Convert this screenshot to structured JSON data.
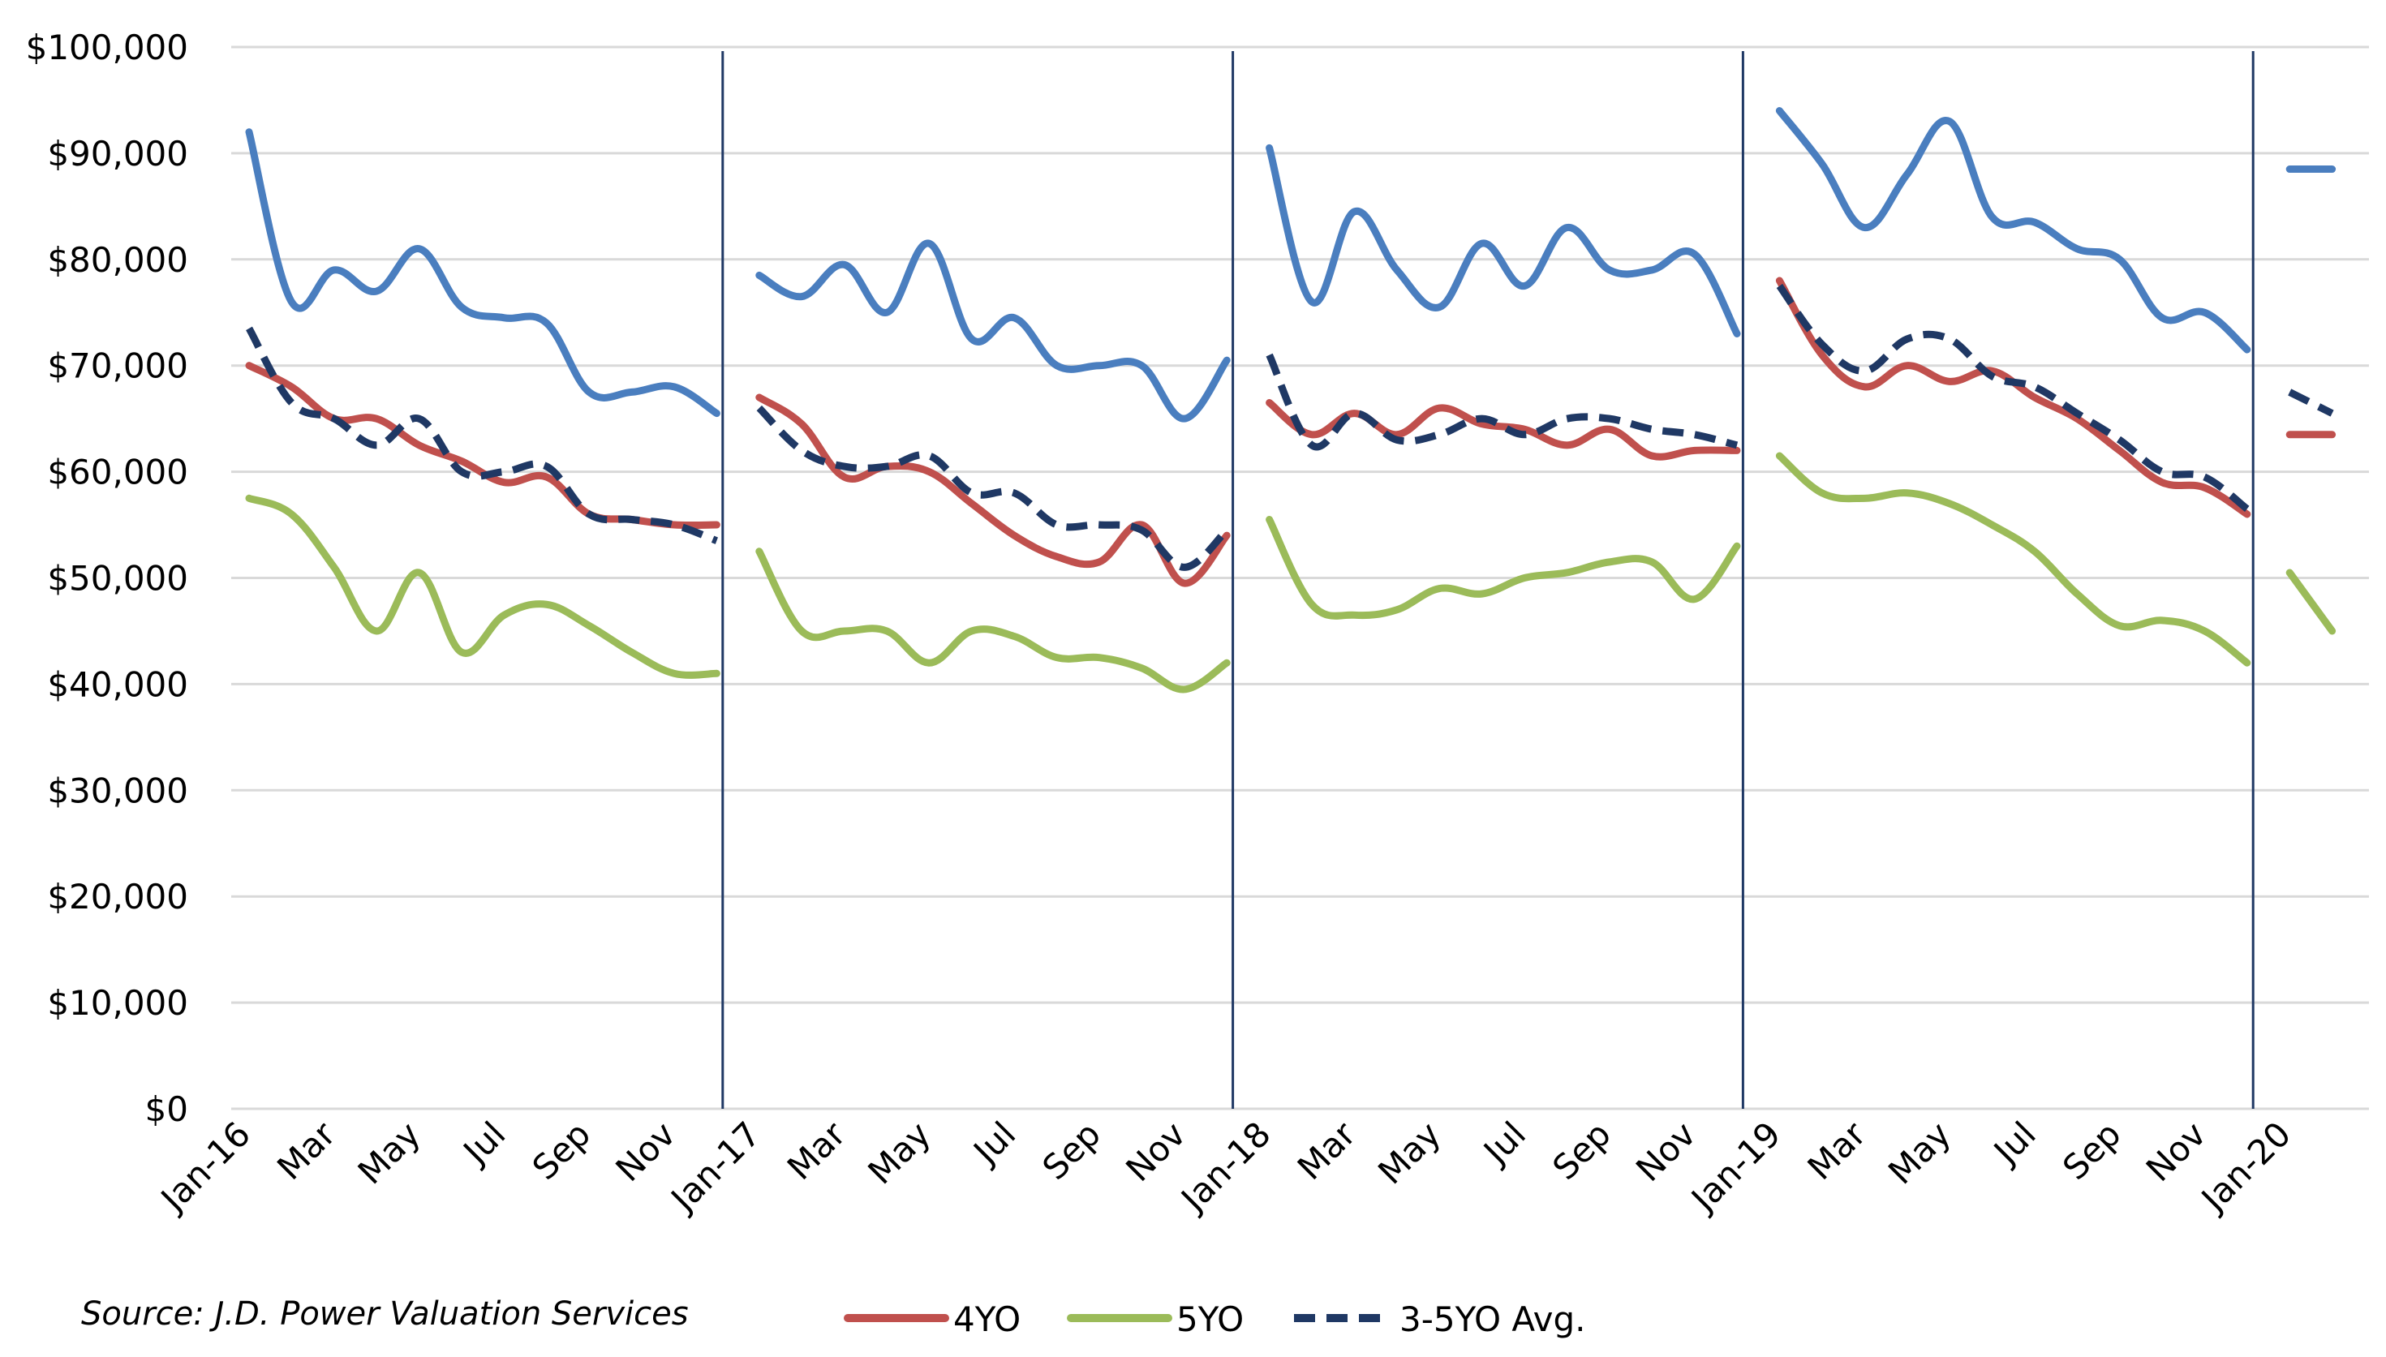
{
  "source": "Source: J.D. Power Valuation Services",
  "colors": {
    "series_3yo": "#4a7ebf",
    "series_4yo": "#c0504d",
    "series_5yo": "#9bbb59",
    "series_avg": "#1f3864",
    "year_divider": "#1f3864",
    "grid": "#d9d9d9"
  },
  "chart_data": {
    "type": "line",
    "title": "",
    "xlabel": "",
    "ylabel": "",
    "ylim": [
      0,
      100000
    ],
    "yticks": [
      0,
      10000,
      20000,
      30000,
      40000,
      50000,
      60000,
      70000,
      80000,
      90000,
      100000
    ],
    "ytick_labels": [
      "$0",
      "$10,000",
      "$20,000",
      "$30,000",
      "$40,000",
      "$50,000",
      "$60,000",
      "$70,000",
      "$80,000",
      "$90,000",
      "$100,000"
    ],
    "grid": "horizontal",
    "x_tick_labels": [
      "Jan-16",
      "Mar",
      "May",
      "Jul",
      "Sep",
      "Nov",
      "Jan-17",
      "Mar",
      "May",
      "Jul",
      "Sep",
      "Nov",
      "Jan-18",
      "Mar",
      "May",
      "Jul",
      "Sep",
      "Nov",
      "Jan-19",
      "Mar",
      "May",
      "Jul",
      "Sep",
      "Nov",
      "Jan-20"
    ],
    "legend_position": "bottom",
    "year_dividers": [
      "Jan-17",
      "Jan-18",
      "Jan-19",
      "Jan-20"
    ],
    "series": [
      {
        "key": "3yo",
        "name": "",
        "style": "solid",
        "color": "#4a7ebf",
        "segments": [
          [
            92000,
            76000,
            79000,
            77000,
            81000,
            75500,
            74500,
            74000,
            67500,
            67500,
            68000,
            65500
          ],
          [
            78500,
            76500,
            79500,
            75000,
            81500,
            72500,
            74500,
            70000,
            70000,
            70000,
            65000,
            70500
          ],
          [
            90500,
            76000,
            84500,
            79000,
            75500,
            81500,
            77500,
            83000,
            79000,
            79000,
            80500,
            73000
          ],
          [
            94000,
            89000,
            83000,
            88000,
            93000,
            84000,
            83500,
            81000,
            80000,
            74500,
            75000,
            71500
          ],
          [
            88500,
            88500
          ]
        ]
      },
      {
        "key": "4yo",
        "name": "4YO",
        "style": "solid",
        "color": "#c0504d",
        "segments": [
          [
            70000,
            68000,
            65000,
            65000,
            62500,
            61000,
            59000,
            59500,
            56000,
            55500,
            55000,
            55000
          ],
          [
            67000,
            64500,
            59500,
            60500,
            60000,
            57000,
            54000,
            52000,
            51500,
            55000,
            49500,
            54000
          ],
          [
            66500,
            63500,
            65500,
            63500,
            66000,
            64500,
            64000,
            62500,
            64000,
            61500,
            62000,
            62000
          ],
          [
            78000,
            71000,
            68000,
            70000,
            68500,
            69500,
            67000,
            65000,
            62000,
            59000,
            58500,
            56000
          ],
          [
            63500,
            63500
          ]
        ]
      },
      {
        "key": "5yo",
        "name": "5YO",
        "style": "solid",
        "color": "#9bbb59",
        "segments": [
          [
            57500,
            56000,
            51000,
            45000,
            50500,
            43000,
            46500,
            47500,
            45500,
            43000,
            41000,
            41000
          ],
          [
            52500,
            45000,
            45000,
            45000,
            42000,
            45000,
            44500,
            42500,
            42500,
            41500,
            39500,
            42000
          ],
          [
            55500,
            47500,
            46500,
            47000,
            49000,
            48500,
            50000,
            50500,
            51500,
            51500,
            48000,
            53000
          ],
          [
            61500,
            58000,
            57500,
            58000,
            57000,
            55000,
            52500,
            48500,
            45500,
            46000,
            45000,
            42000
          ],
          [
            50500,
            45000
          ]
        ]
      },
      {
        "key": "avg",
        "name": "3-5YO Avg.",
        "style": "dashed",
        "color": "#1f3864",
        "segments": [
          [
            73500,
            66500,
            65000,
            62500,
            65000,
            60000,
            60000,
            60500,
            56000,
            55500,
            55000,
            53500
          ],
          [
            66000,
            62000,
            60500,
            60500,
            61500,
            58000,
            58000,
            55000,
            55000,
            54500,
            51000,
            54500
          ],
          [
            71000,
            62500,
            65500,
            63000,
            63500,
            65000,
            63500,
            65000,
            65000,
            64000,
            63500,
            62500
          ],
          [
            77500,
            72000,
            69500,
            72500,
            72500,
            69000,
            68000,
            65500,
            63000,
            60000,
            59500,
            56500
          ],
          [
            67500,
            65500
          ]
        ]
      }
    ]
  }
}
